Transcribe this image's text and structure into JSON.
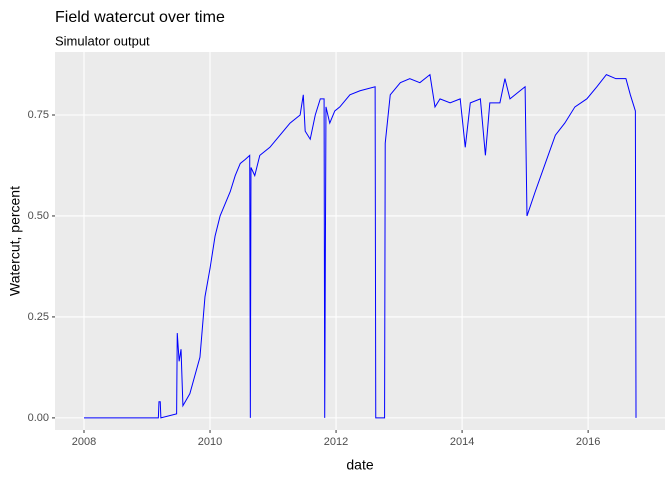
{
  "chart_data": {
    "type": "line",
    "title": "Field watercut over time",
    "subtitle": "Simulator output",
    "x_label": "date",
    "y_label": "Watercut, percent",
    "x": [
      2008.0,
      2009.18,
      2009.19,
      2009.21,
      2009.22,
      2009.47,
      2009.48,
      2009.51,
      2009.54,
      2009.57,
      2009.68,
      2009.84,
      2009.92,
      2010.0,
      2010.08,
      2010.16,
      2010.24,
      2010.32,
      2010.4,
      2010.48,
      2010.56,
      2010.63,
      2010.64,
      2010.65,
      2010.71,
      2010.79,
      2010.95,
      2011.11,
      2011.27,
      2011.43,
      2011.48,
      2011.51,
      2011.59,
      2011.67,
      2011.75,
      2011.81,
      2011.82,
      2011.84,
      2011.9,
      2011.98,
      2012.06,
      2012.22,
      2012.38,
      2012.62,
      2012.63,
      2012.77,
      2012.78,
      2012.86,
      2013.02,
      2013.17,
      2013.33,
      2013.49,
      2013.57,
      2013.65,
      2013.81,
      2013.97,
      2014.05,
      2014.13,
      2014.29,
      2014.37,
      2014.44,
      2014.6,
      2014.68,
      2014.76,
      2014.92,
      2015.0,
      2015.03,
      2015.16,
      2015.32,
      2015.48,
      2015.63,
      2015.79,
      2015.98,
      2016.14,
      2016.29,
      2016.44,
      2016.6,
      2016.67,
      2016.75,
      2016.76
    ],
    "series": [
      {
        "name": "watercut",
        "color": "#0000ff",
        "values": [
          0,
          0,
          0.04,
          0.04,
          0,
          0.01,
          0.21,
          0.14,
          0.17,
          0.03,
          0.06,
          0.15,
          0.3,
          0.37,
          0.45,
          0.5,
          0.53,
          0.56,
          0.6,
          0.63,
          0.64,
          0.65,
          0,
          0.62,
          0.6,
          0.65,
          0.67,
          0.7,
          0.73,
          0.75,
          0.8,
          0.71,
          0.69,
          0.75,
          0.79,
          0.79,
          0,
          0.77,
          0.73,
          0.76,
          0.77,
          0.8,
          0.81,
          0.82,
          0,
          0,
          0.68,
          0.8,
          0.83,
          0.84,
          0.83,
          0.85,
          0.77,
          0.79,
          0.78,
          0.79,
          0.67,
          0.78,
          0.79,
          0.65,
          0.78,
          0.78,
          0.84,
          0.79,
          0.81,
          0.82,
          0.5,
          0.56,
          0.63,
          0.7,
          0.73,
          0.77,
          0.79,
          0.82,
          0.85,
          0.84,
          0.84,
          0.8,
          0.76,
          0
        ]
      }
    ],
    "xlim": [
      2007.54,
      2017.22
    ],
    "ylim": [
      -0.03,
      0.906
    ],
    "xticks": [
      2008,
      2010,
      2012,
      2014,
      2016
    ],
    "yticks": [
      {
        "value": 0,
        "label": "0.00"
      },
      {
        "value": 0.25,
        "label": "0.25"
      },
      {
        "value": 0.5,
        "label": "0.50"
      },
      {
        "value": 0.75,
        "label": "0.75"
      }
    ],
    "grid": true
  }
}
